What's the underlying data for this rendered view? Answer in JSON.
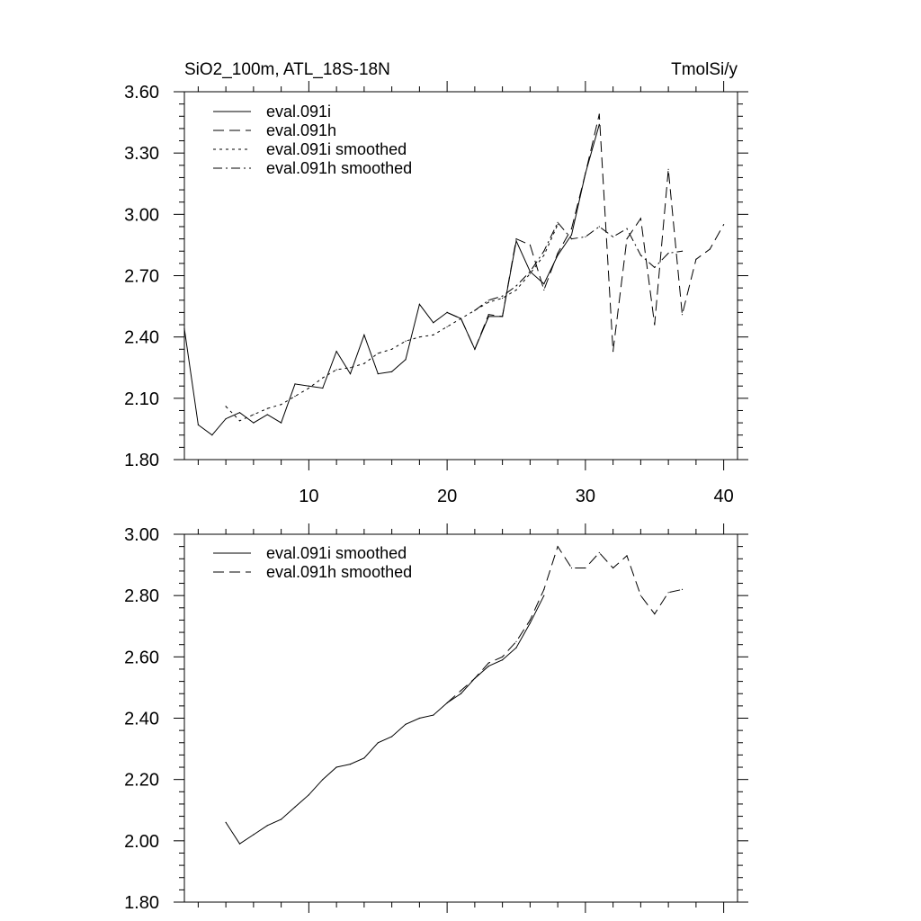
{
  "chart_data": [
    {
      "type": "line",
      "title_left": "SiO2_100m, ATL_18S-18N",
      "title_right": "TmolSi/y",
      "xlim": [
        1,
        41
      ],
      "ylim": [
        1.8,
        3.6
      ],
      "xticks": [
        10,
        20,
        30,
        40
      ],
      "xtick_labels": [
        "10",
        "20",
        "30",
        "40"
      ],
      "yticks": [
        1.8,
        2.1,
        2.4,
        2.7,
        3.0,
        3.3,
        3.6
      ],
      "ytick_labels": [
        "1.80",
        "2.10",
        "2.40",
        "2.70",
        "3.00",
        "3.30",
        "3.60"
      ],
      "legend_position": "top-left",
      "series": [
        {
          "name": "eval.091i",
          "dash": "solid",
          "x": [
            1,
            2,
            3,
            4,
            5,
            6,
            7,
            8,
            9,
            10,
            11,
            12,
            13,
            14,
            15,
            16,
            17,
            18,
            19,
            20,
            21,
            22,
            23,
            24,
            25,
            26,
            27,
            28,
            29,
            30,
            31
          ],
          "y": [
            2.44,
            1.97,
            1.92,
            2.0,
            2.03,
            1.98,
            2.02,
            1.98,
            2.17,
            2.16,
            2.15,
            2.33,
            2.22,
            2.41,
            2.22,
            2.23,
            2.29,
            2.56,
            2.47,
            2.52,
            2.49,
            2.34,
            2.5,
            2.5,
            2.87,
            2.72,
            2.66,
            2.8,
            2.9,
            3.2,
            3.44
          ]
        },
        {
          "name": "eval.091h",
          "dash": "long-dash",
          "x": [
            20,
            21,
            22,
            23,
            24,
            25,
            26,
            27,
            28,
            29,
            30,
            31,
            32,
            33,
            34,
            35,
            36,
            37,
            38,
            39,
            40
          ],
          "y": [
            2.52,
            2.49,
            2.34,
            2.51,
            2.5,
            2.88,
            2.85,
            2.63,
            2.81,
            2.93,
            3.2,
            3.49,
            2.33,
            2.88,
            2.98,
            2.46,
            3.22,
            2.51,
            2.78,
            2.83,
            2.95
          ]
        },
        {
          "name": "eval.091i smoothed",
          "dash": "short-dash",
          "x": [
            4,
            5,
            6,
            7,
            8,
            9,
            10,
            11,
            12,
            13,
            14,
            15,
            16,
            17,
            18,
            19,
            20,
            21,
            22,
            23,
            24,
            25,
            26,
            27,
            28
          ],
          "y": [
            2.06,
            1.99,
            2.02,
            2.05,
            2.07,
            2.11,
            2.15,
            2.2,
            2.24,
            2.25,
            2.27,
            2.32,
            2.34,
            2.38,
            2.4,
            2.41,
            2.45,
            2.49,
            2.53,
            2.57,
            2.59,
            2.63,
            2.71,
            2.8,
            2.95
          ]
        },
        {
          "name": "eval.091h smoothed",
          "dash": "dash-dot",
          "x": [
            22,
            23,
            24,
            25,
            26,
            27,
            28,
            29,
            30,
            31,
            32,
            33,
            34,
            35,
            36,
            37
          ],
          "y": [
            2.53,
            2.58,
            2.6,
            2.65,
            2.72,
            2.82,
            2.96,
            2.88,
            2.89,
            2.94,
            2.89,
            2.93,
            2.8,
            2.74,
            2.81,
            2.82
          ]
        }
      ]
    },
    {
      "type": "line",
      "xlim": [
        1,
        41
      ],
      "ylim": [
        1.8,
        3.0
      ],
      "xticks": [
        10,
        20,
        30,
        40
      ],
      "yticks": [
        1.8,
        2.0,
        2.2,
        2.4,
        2.6,
        2.8,
        3.0
      ],
      "ytick_labels": [
        "1.80",
        "2.00",
        "2.20",
        "2.40",
        "2.60",
        "2.80",
        "3.00"
      ],
      "legend_position": "top-left",
      "series": [
        {
          "name": "eval.091i smoothed",
          "dash": "solid",
          "x": [
            4,
            5,
            6,
            7,
            8,
            9,
            10,
            11,
            12,
            13,
            14,
            15,
            16,
            17,
            18,
            19,
            20,
            21,
            22,
            23,
            24,
            25,
            26,
            27
          ],
          "y": [
            2.06,
            1.99,
            2.02,
            2.05,
            2.07,
            2.11,
            2.15,
            2.2,
            2.24,
            2.25,
            2.27,
            2.32,
            2.34,
            2.38,
            2.4,
            2.41,
            2.45,
            2.48,
            2.53,
            2.57,
            2.59,
            2.63,
            2.71,
            2.8
          ]
        },
        {
          "name": "eval.091h smoothed",
          "dash": "long-dash",
          "x": [
            20,
            21,
            22,
            23,
            24,
            25,
            26,
            27,
            28,
            29,
            30,
            31,
            32,
            33,
            34,
            35,
            36,
            37
          ],
          "y": [
            2.45,
            2.49,
            2.53,
            2.58,
            2.6,
            2.65,
            2.72,
            2.82,
            2.96,
            2.89,
            2.89,
            2.94,
            2.89,
            2.93,
            2.8,
            2.74,
            2.81,
            2.82
          ]
        }
      ]
    }
  ]
}
